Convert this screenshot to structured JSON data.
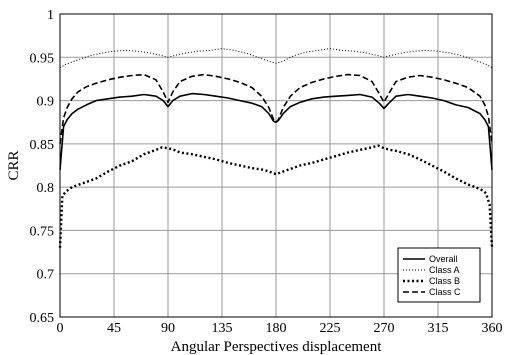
{
  "chart_data": {
    "type": "line",
    "xlabel": "Angular Perspectives displacement",
    "ylabel": "CRR",
    "xlim": [
      0,
      360
    ],
    "ylim": [
      0.65,
      1.0
    ],
    "xticks": [
      0,
      45,
      90,
      135,
      180,
      225,
      270,
      315,
      360
    ],
    "xtick_labels": [
      "0",
      "45",
      "90",
      "135",
      "180",
      "225",
      "270",
      "315",
      "360"
    ],
    "yticks": [
      0.65,
      0.7,
      0.75,
      0.8,
      0.85,
      0.9,
      0.95,
      1.0
    ],
    "ytick_labels": [
      "0.65",
      "0.7",
      "0.75",
      "0.8",
      "0.85",
      "0.9",
      "0.95",
      "1"
    ],
    "grid": true,
    "legend_position": "bottom-right",
    "series": [
      {
        "name": "Overall",
        "style": "solid",
        "x": [
          0,
          3,
          6,
          10,
          15,
          22,
          30,
          40,
          50,
          60,
          70,
          80,
          86,
          90,
          94,
          100,
          110,
          120,
          130,
          140,
          150,
          160,
          168,
          174,
          178,
          180,
          182,
          186,
          192,
          200,
          210,
          220,
          230,
          240,
          250,
          260,
          266,
          270,
          274,
          280,
          290,
          300,
          310,
          320,
          330,
          340,
          350,
          354,
          357,
          360
        ],
        "y": [
          0.82,
          0.87,
          0.878,
          0.885,
          0.89,
          0.895,
          0.9,
          0.902,
          0.904,
          0.905,
          0.907,
          0.905,
          0.9,
          0.893,
          0.9,
          0.905,
          0.908,
          0.907,
          0.905,
          0.903,
          0.9,
          0.897,
          0.893,
          0.885,
          0.876,
          0.875,
          0.877,
          0.885,
          0.893,
          0.898,
          0.902,
          0.904,
          0.905,
          0.906,
          0.907,
          0.904,
          0.897,
          0.891,
          0.897,
          0.905,
          0.907,
          0.905,
          0.903,
          0.9,
          0.895,
          0.892,
          0.885,
          0.878,
          0.87,
          0.82
        ]
      },
      {
        "name": "Class A",
        "style": "dotted",
        "x": [
          0,
          5,
          15,
          25,
          35,
          45,
          55,
          65,
          75,
          85,
          90,
          95,
          105,
          115,
          125,
          135,
          145,
          155,
          165,
          175,
          180,
          185,
          195,
          205,
          215,
          225,
          235,
          245,
          255,
          265,
          270,
          275,
          285,
          295,
          305,
          315,
          325,
          335,
          345,
          355,
          360
        ],
        "y": [
          0.938,
          0.942,
          0.947,
          0.952,
          0.955,
          0.957,
          0.958,
          0.957,
          0.955,
          0.952,
          0.95,
          0.952,
          0.955,
          0.957,
          0.958,
          0.96,
          0.958,
          0.955,
          0.95,
          0.945,
          0.943,
          0.945,
          0.952,
          0.956,
          0.958,
          0.96,
          0.958,
          0.957,
          0.955,
          0.952,
          0.95,
          0.952,
          0.955,
          0.957,
          0.958,
          0.957,
          0.955,
          0.952,
          0.947,
          0.942,
          0.938
        ]
      },
      {
        "name": "Class B",
        "style": "heavy-dotted",
        "x": [
          0,
          2,
          5,
          10,
          20,
          30,
          40,
          50,
          60,
          70,
          80,
          85,
          90,
          95,
          100,
          110,
          120,
          130,
          140,
          150,
          160,
          170,
          176,
          180,
          184,
          190,
          200,
          210,
          220,
          230,
          240,
          250,
          260,
          265,
          270,
          275,
          280,
          290,
          300,
          310,
          320,
          330,
          340,
          350,
          355,
          358,
          360
        ],
        "y": [
          0.73,
          0.79,
          0.795,
          0.8,
          0.805,
          0.81,
          0.818,
          0.825,
          0.83,
          0.838,
          0.843,
          0.846,
          0.845,
          0.843,
          0.84,
          0.838,
          0.835,
          0.832,
          0.828,
          0.825,
          0.822,
          0.82,
          0.817,
          0.815,
          0.817,
          0.82,
          0.825,
          0.828,
          0.832,
          0.836,
          0.84,
          0.843,
          0.846,
          0.848,
          0.845,
          0.843,
          0.842,
          0.838,
          0.832,
          0.825,
          0.818,
          0.81,
          0.803,
          0.798,
          0.793,
          0.78,
          0.73
        ]
      },
      {
        "name": "Class C",
        "style": "dashed",
        "x": [
          0,
          3,
          6,
          10,
          15,
          22,
          30,
          40,
          50,
          60,
          70,
          80,
          86,
          90,
          94,
          100,
          110,
          120,
          130,
          140,
          150,
          160,
          168,
          174,
          178,
          180,
          182,
          186,
          192,
          200,
          210,
          220,
          230,
          240,
          250,
          260,
          266,
          270,
          274,
          280,
          290,
          300,
          310,
          320,
          330,
          340,
          350,
          354,
          357,
          360
        ],
        "y": [
          0.85,
          0.88,
          0.892,
          0.902,
          0.91,
          0.916,
          0.92,
          0.924,
          0.927,
          0.929,
          0.93,
          0.924,
          0.91,
          0.898,
          0.91,
          0.922,
          0.928,
          0.93,
          0.928,
          0.925,
          0.921,
          0.915,
          0.905,
          0.892,
          0.878,
          0.875,
          0.878,
          0.892,
          0.905,
          0.915,
          0.921,
          0.925,
          0.928,
          0.93,
          0.929,
          0.922,
          0.908,
          0.898,
          0.908,
          0.922,
          0.927,
          0.929,
          0.927,
          0.924,
          0.92,
          0.915,
          0.905,
          0.895,
          0.882,
          0.85
        ]
      }
    ]
  }
}
